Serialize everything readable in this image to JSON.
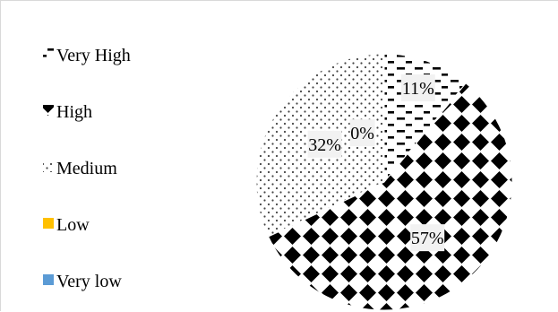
{
  "chart_data": {
    "type": "pie",
    "title": "",
    "categories": [
      "Very High",
      "High",
      "Medium",
      "Low",
      "Very low"
    ],
    "values": [
      11,
      57,
      32,
      0,
      0
    ],
    "data_labels": [
      "11%",
      "57%",
      "32%",
      "0%",
      ""
    ],
    "legend_placement": "left",
    "series_styles": [
      {
        "name": "Very High",
        "pattern": "dashed-horizontal"
      },
      {
        "name": "High",
        "pattern": "diamond-checker"
      },
      {
        "name": "Medium",
        "pattern": "dotted"
      },
      {
        "name": "Low",
        "pattern": "solid",
        "color": "#ffc000"
      },
      {
        "name": "Very low",
        "pattern": "solid",
        "color": "#5b9bd5"
      }
    ]
  }
}
